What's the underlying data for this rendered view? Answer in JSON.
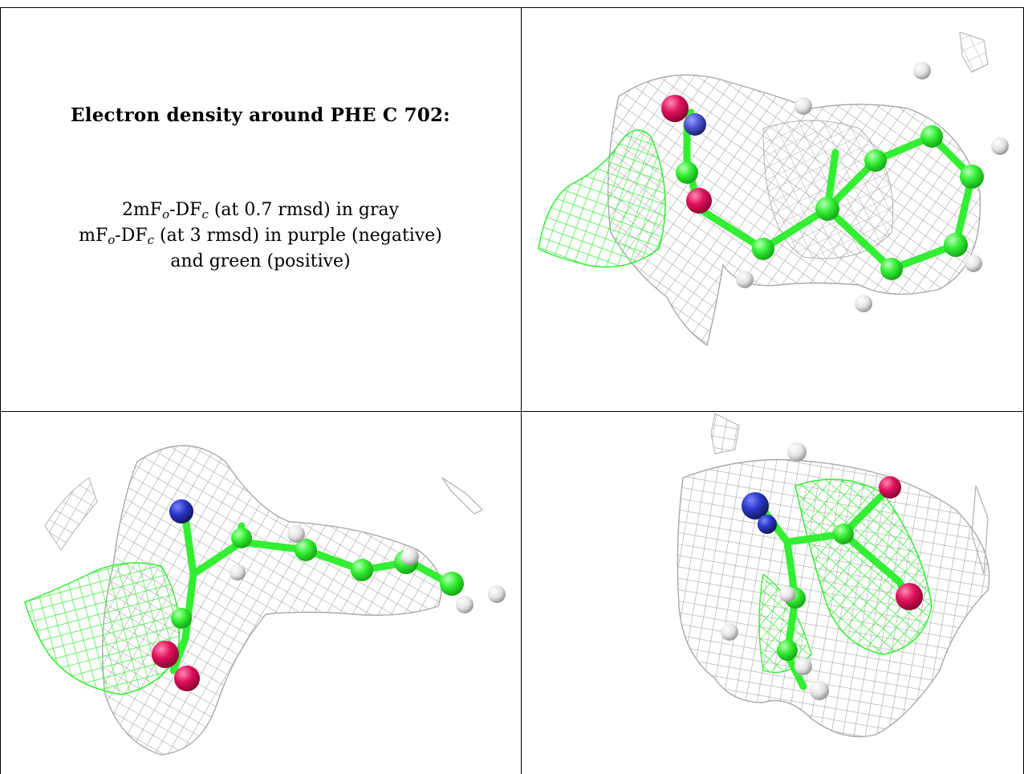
{
  "panel_text": {
    "title": "Electron density around PHE C 702:",
    "line1": {
      "pre": "2mF",
      "sub1": "o",
      "mid": "-DF",
      "sub2": "c",
      "post": " (at 0.7 rmsd) in gray"
    },
    "line2": {
      "pre": "mF",
      "sub1": "o",
      "mid": "-DF",
      "sub2": "c",
      "post": " (at 3 rmsd) in purple (negative)"
    },
    "line3": "and green (positive)"
  },
  "colors": {
    "mesh_gray": "#a9a9a9",
    "mesh_green": "#33ee33",
    "carbon": "#33ee33",
    "oxygen": "#e0105a",
    "nitrogen": "#2a36c8",
    "hydrogen": "#e8e8e8"
  },
  "views": [
    {
      "name": "view-top-right"
    },
    {
      "name": "view-bottom-left"
    },
    {
      "name": "view-bottom-right"
    }
  ]
}
